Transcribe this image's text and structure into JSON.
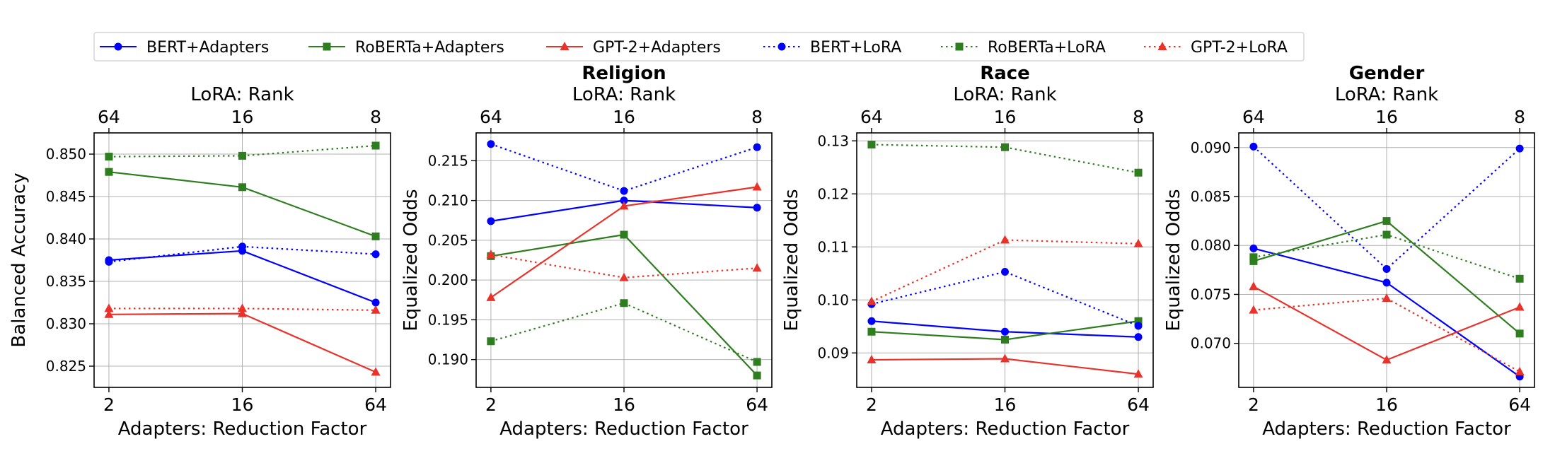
{
  "legend": {
    "entries": [
      {
        "label": "BERT+Adapters",
        "color": "#0000ff",
        "dash": "solid",
        "marker": "circle"
      },
      {
        "label": "RoBERTa+Adapters",
        "color": "#2e7d1f",
        "dash": "solid",
        "marker": "square"
      },
      {
        "label": "GPT-2+Adapters",
        "color": "#e8322a",
        "dash": "solid",
        "marker": "triangle"
      },
      {
        "label": "BERT+LoRA",
        "color": "#0000ff",
        "dash": "dotted",
        "marker": "circle"
      },
      {
        "label": "RoBERTa+LoRA",
        "color": "#2e7d1f",
        "dash": "dotted",
        "marker": "square"
      },
      {
        "label": "GPT-2+LoRA",
        "color": "#e8322a",
        "dash": "dotted",
        "marker": "triangle"
      }
    ]
  },
  "chart_data": [
    {
      "type": "line",
      "title": "",
      "xlabel": "Adapters: Reduction Factor",
      "top_xlabel": "LoRA: Rank",
      "ylabel": "Balanced Accuracy",
      "categories": [
        "2",
        "16",
        "64"
      ],
      "top_categories": [
        "64",
        "16",
        "8"
      ],
      "ylim": [
        0.8225,
        0.8525
      ],
      "yticks": [
        0.825,
        0.83,
        0.835,
        0.84,
        0.845,
        0.85
      ],
      "ytick_labels": [
        "0.825",
        "0.830",
        "0.835",
        "0.840",
        "0.845",
        "0.850"
      ],
      "series": [
        {
          "name": "BERT+Adapters",
          "values": [
            0.8375,
            0.8386,
            0.8325
          ]
        },
        {
          "name": "RoBERTa+Adapters",
          "values": [
            0.8479,
            0.8461,
            0.8403
          ]
        },
        {
          "name": "GPT-2+Adapters",
          "values": [
            0.8311,
            0.8312,
            0.8243
          ]
        },
        {
          "name": "BERT+LoRA",
          "values": [
            0.8373,
            0.8391,
            0.8382
          ]
        },
        {
          "name": "RoBERTa+LoRA",
          "values": [
            0.8497,
            0.8498,
            0.851
          ]
        },
        {
          "name": "GPT-2+LoRA",
          "values": [
            0.8318,
            0.8318,
            0.8316
          ]
        }
      ]
    },
    {
      "type": "line",
      "title": "Religion",
      "xlabel": "Adapters: Reduction Factor",
      "top_xlabel": "LoRA: Rank",
      "ylabel": "Equalized Odds",
      "categories": [
        "2",
        "16",
        "64"
      ],
      "top_categories": [
        "64",
        "16",
        "8"
      ],
      "ylim": [
        0.1865,
        0.2185
      ],
      "yticks": [
        0.19,
        0.195,
        0.2,
        0.205,
        0.21,
        0.215
      ],
      "ytick_labels": [
        "0.190",
        "0.195",
        "0.200",
        "0.205",
        "0.210",
        "0.215"
      ],
      "series": [
        {
          "name": "BERT+Adapters",
          "values": [
            0.2074,
            0.21,
            0.2091
          ]
        },
        {
          "name": "RoBERTa+Adapters",
          "values": [
            0.203,
            0.2057,
            0.188
          ]
        },
        {
          "name": "GPT-2+Adapters",
          "values": [
            0.1978,
            0.2093,
            0.2117
          ]
        },
        {
          "name": "BERT+LoRA",
          "values": [
            0.2171,
            0.2112,
            0.2167
          ]
        },
        {
          "name": "RoBERTa+LoRA",
          "values": [
            0.1923,
            0.1971,
            0.1897
          ]
        },
        {
          "name": "GPT-2+LoRA",
          "values": [
            0.2032,
            0.2003,
            0.2015
          ]
        }
      ]
    },
    {
      "type": "line",
      "title": "Race",
      "xlabel": "Adapters: Reduction Factor",
      "top_xlabel": "LoRA: Rank",
      "ylabel": "Equalized Odds",
      "categories": [
        "2",
        "16",
        "64"
      ],
      "top_categories": [
        "64",
        "16",
        "8"
      ],
      "ylim": [
        0.0835,
        0.1315
      ],
      "yticks": [
        0.09,
        0.1,
        0.11,
        0.12,
        0.13
      ],
      "ytick_labels": [
        "0.09",
        "0.10",
        "0.11",
        "0.12",
        "0.13"
      ],
      "series": [
        {
          "name": "BERT+Adapters",
          "values": [
            0.096,
            0.094,
            0.093
          ]
        },
        {
          "name": "RoBERTa+Adapters",
          "values": [
            0.094,
            0.0925,
            0.096
          ]
        },
        {
          "name": "GPT-2+Adapters",
          "values": [
            0.0887,
            0.0889,
            0.086
          ]
        },
        {
          "name": "BERT+LoRA",
          "values": [
            0.0992,
            0.1053,
            0.0951
          ]
        },
        {
          "name": "RoBERTa+LoRA",
          "values": [
            0.1293,
            0.1288,
            0.124
          ]
        },
        {
          "name": "GPT-2+LoRA",
          "values": [
            0.0997,
            0.1113,
            0.1106
          ]
        }
      ]
    },
    {
      "type": "line",
      "title": "Gender",
      "xlabel": "Adapters: Reduction Factor",
      "top_xlabel": "LoRA: Rank",
      "ylabel": "Equalized Odds",
      "categories": [
        "2",
        "16",
        "64"
      ],
      "top_categories": [
        "64",
        "16",
        "8"
      ],
      "ylim": [
        0.0655,
        0.0915
      ],
      "yticks": [
        0.07,
        0.075,
        0.08,
        0.085,
        0.09
      ],
      "ytick_labels": [
        "0.070",
        "0.075",
        "0.080",
        "0.085",
        "0.090"
      ],
      "series": [
        {
          "name": "BERT+Adapters",
          "values": [
            0.0797,
            0.0762,
            0.0666
          ]
        },
        {
          "name": "RoBERTa+Adapters",
          "values": [
            0.0784,
            0.0825,
            0.071
          ]
        },
        {
          "name": "GPT-2+Adapters",
          "values": [
            0.0758,
            0.0683,
            0.0737
          ]
        },
        {
          "name": "BERT+LoRA",
          "values": [
            0.0901,
            0.0776,
            0.0899
          ]
        },
        {
          "name": "RoBERTa+LoRA",
          "values": [
            0.0788,
            0.0811,
            0.0766
          ]
        },
        {
          "name": "GPT-2+LoRA",
          "values": [
            0.0734,
            0.0746,
            0.0671
          ]
        }
      ]
    }
  ]
}
